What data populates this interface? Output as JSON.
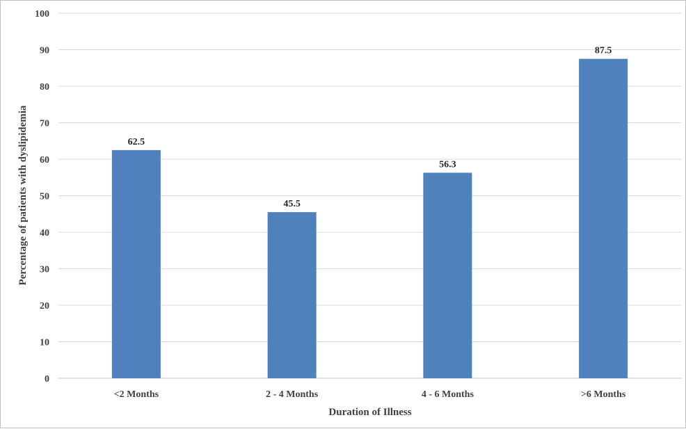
{
  "chart_data": {
    "type": "bar",
    "categories": [
      "<2 Months",
      "2 - 4 Months",
      "4 - 6 Months",
      ">6 Months"
    ],
    "values": [
      62.5,
      45.5,
      56.3,
      87.5
    ],
    "data_labels": [
      "62.5",
      "45.5",
      "56.3",
      "87.5"
    ],
    "title": "",
    "xlabel": "Duration of Illness",
    "ylabel": "Percentage of patients with dyslipidemia",
    "ylim": [
      0,
      100
    ],
    "yticks": [
      0,
      10,
      20,
      30,
      40,
      50,
      60,
      70,
      80,
      90,
      100
    ],
    "ytick_labels": [
      "0",
      "10",
      "20",
      "30",
      "40",
      "50",
      "60",
      "70",
      "80",
      "90",
      "100"
    ],
    "grid": true,
    "legend": "none",
    "bar_color": "#4f81bd"
  }
}
